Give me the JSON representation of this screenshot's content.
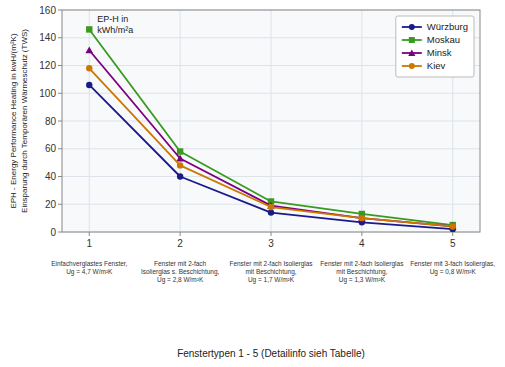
{
  "chart_data": {
    "type": "line",
    "x": [
      1,
      2,
      3,
      4,
      5
    ],
    "series": [
      {
        "name": "Würzburg",
        "values": [
          106,
          40,
          14,
          7,
          2
        ],
        "color": "#1a1a8c",
        "marker": "circle"
      },
      {
        "name": "Moskau",
        "values": [
          146,
          58,
          22,
          13,
          5
        ],
        "color": "#3a9a20",
        "marker": "square"
      },
      {
        "name": "Minsk",
        "values": [
          131,
          53,
          19,
          10,
          4
        ],
        "color": "#7b0080",
        "marker": "triangle"
      },
      {
        "name": "Kiev",
        "values": [
          118,
          48,
          18,
          10,
          4
        ],
        "color": "#cc7700",
        "marker": "circle"
      }
    ],
    "xlabel": "Fenstertypen 1 - 5 (Detailinfo sieh Tabelle)",
    "ylabel": "EPH - Energy Performance Heating in kwH/(m²K)\nEinsparung durch Temporären Wärmeschutz (TWS)",
    "annotation": "EP-H in\nkWh/m²a",
    "x_labels_detail": [
      "Einfachverglastes Fenster,\nUg = 4,7 W/m²K",
      "Fenster mit 2-fach\nIsolierglas s. Beschichtung,\nUg = 2,8 W/m²K",
      "Fenster mit 2-fach Isolierglas\nmit Beschichtung,\nUg = 1,7 W/m²K",
      "Fenster mit 2-fach Isolierglas\nmit Beschichtung,\nUg = 1,3 W/m²K",
      "Fenster mit 3-fach Isolierglas,\nUg = 0,8 W/m²K"
    ],
    "xlim": [
      0.7,
      5.3
    ],
    "xticks": [
      1,
      2,
      3,
      4,
      5
    ],
    "ylim": [
      0,
      160
    ],
    "yticks": [
      0,
      20,
      40,
      60,
      80,
      100,
      120,
      140,
      160
    ],
    "grid": true,
    "legend": "upper right"
  }
}
